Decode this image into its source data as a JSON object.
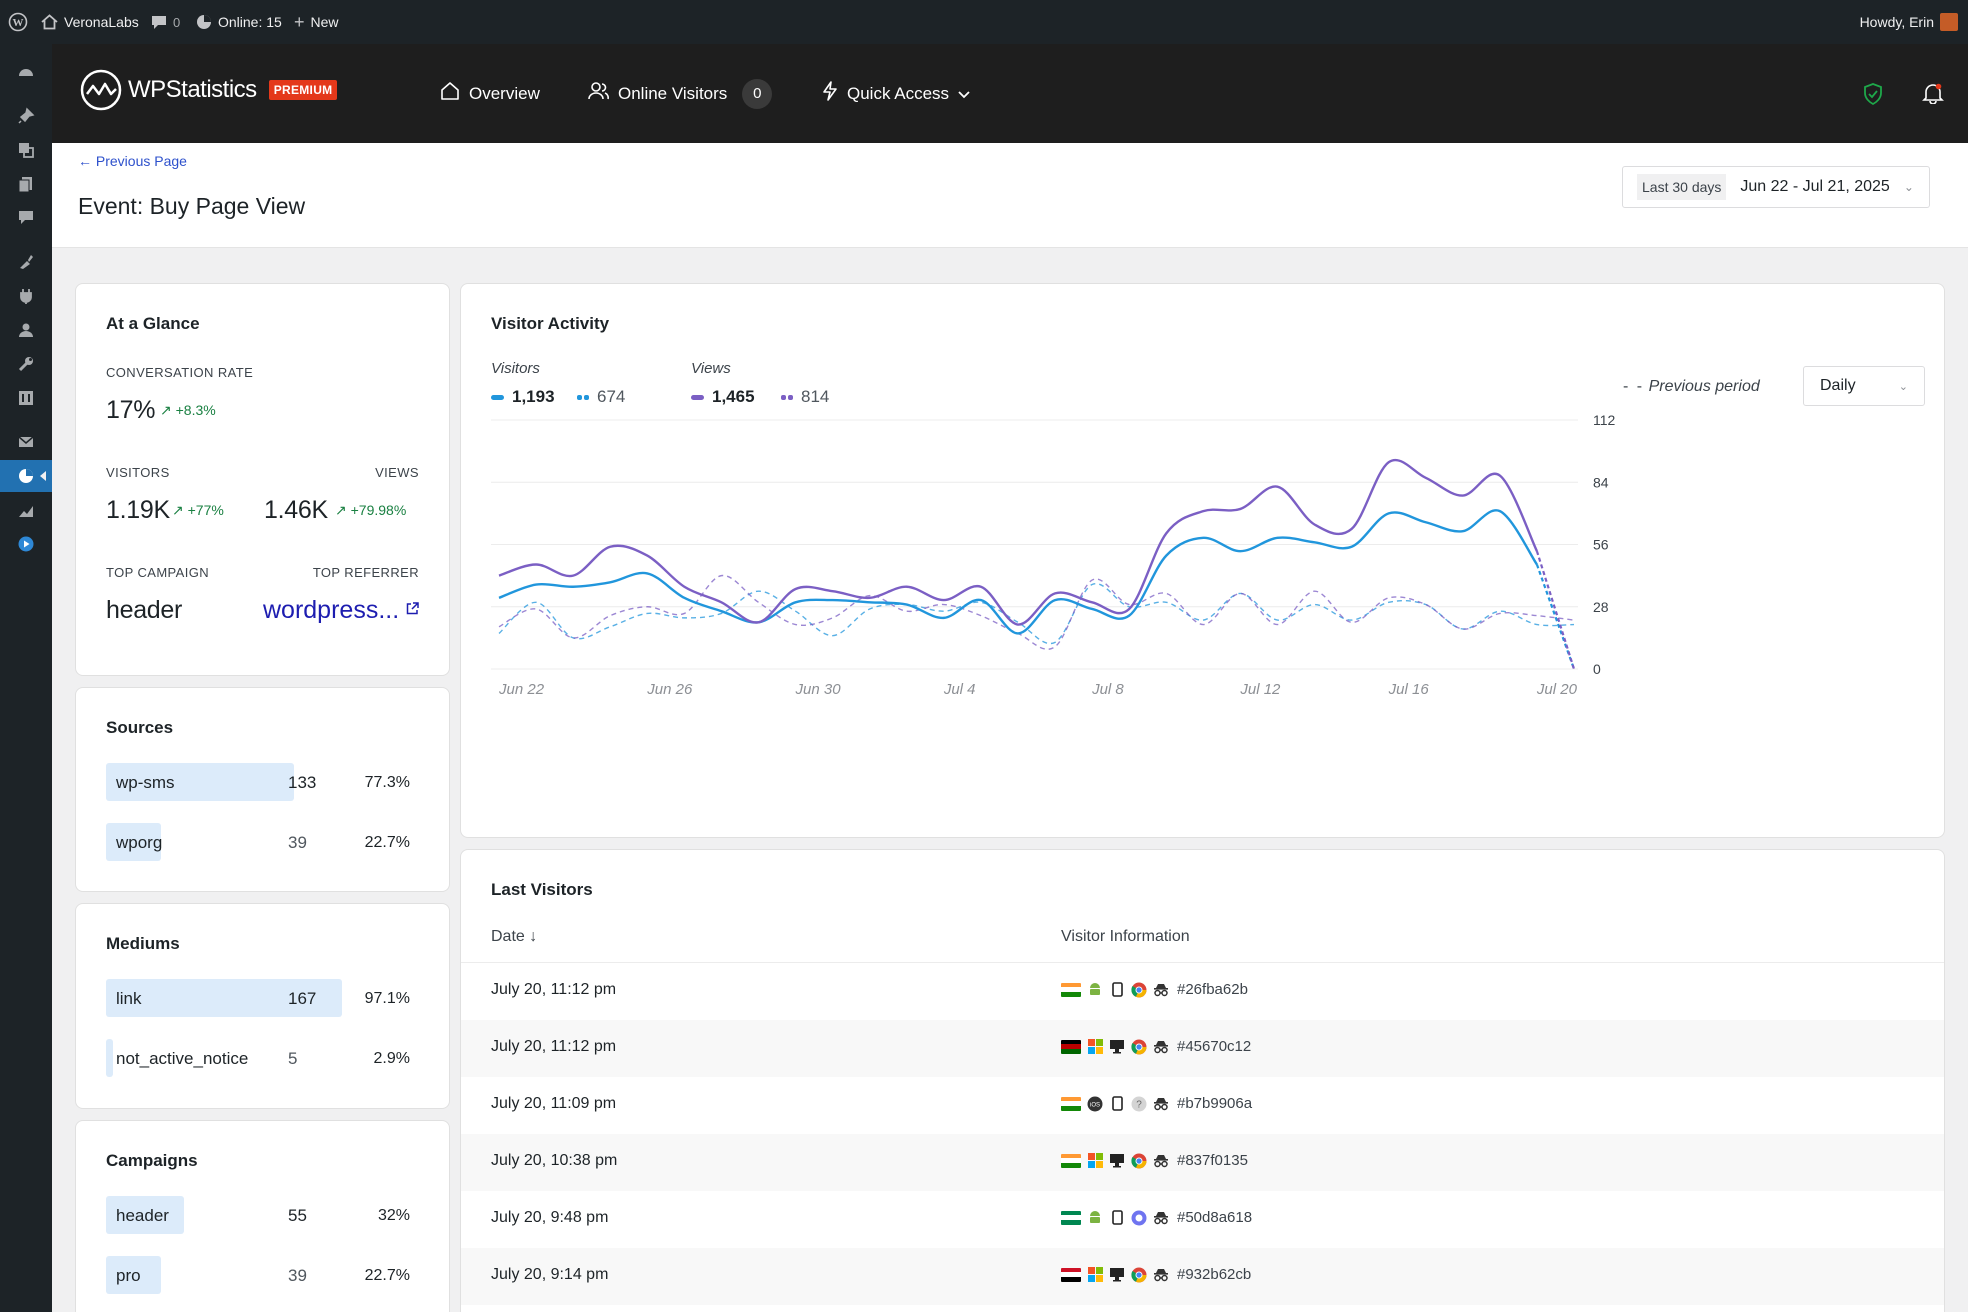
{
  "adminbar": {
    "site_name": "VeronaLabs",
    "comments_count": "0",
    "online": "Online: 15",
    "new_label": "New",
    "howdy": "Howdy, Erin"
  },
  "header": {
    "logo_text": "WPStatistics",
    "premium_badge": "PREMIUM",
    "nav": {
      "overview": "Overview",
      "online_visitors": "Online Visitors",
      "online_count": "0",
      "quick_access": "Quick Access"
    }
  },
  "page": {
    "back_link": "Previous Page",
    "title": "Event: Buy Page View",
    "date_preset": "Last 30 days",
    "date_range": "Jun 22 - Jul 21, 2025"
  },
  "glance": {
    "title": "At a Glance",
    "conversion_label": "CONVERSATION RATE",
    "conversion_value": "17%",
    "conversion_delta": "+8.3%",
    "visitors_label": "VISITORS",
    "visitors_value": "1.19K",
    "visitors_delta": "+77%",
    "views_label": "VIEWS",
    "views_value": "1.46K",
    "views_delta": "+79.98%",
    "campaign_label": "TOP CAMPAIGN",
    "campaign_value": "header",
    "referrer_label": "TOP REFERRER",
    "referrer_value": "wordpress..."
  },
  "sources": {
    "title": "Sources",
    "rows": [
      {
        "name": "wp-sms",
        "count": "133",
        "pct": "77.3%",
        "share": 0.773
      },
      {
        "name": "wporg",
        "count": "39",
        "pct": "22.7%",
        "share": 0.227
      }
    ]
  },
  "mediums": {
    "title": "Mediums",
    "rows": [
      {
        "name": "link",
        "count": "167",
        "pct": "97.1%",
        "share": 0.971
      },
      {
        "name": "not_active_notice",
        "count": "5",
        "pct": "2.9%",
        "share": 0.029
      }
    ]
  },
  "campaigns": {
    "title": "Campaigns",
    "rows": [
      {
        "name": "header",
        "count": "55",
        "pct": "32%",
        "share": 0.32
      },
      {
        "name": "pro",
        "count": "39",
        "pct": "22.7%",
        "share": 0.227
      }
    ]
  },
  "activity": {
    "title": "Visitor Activity",
    "visitors_heading": "Visitors",
    "visitors_current": "1,193",
    "visitors_previous": "674",
    "views_heading": "Views",
    "views_current": "1,465",
    "views_previous": "814",
    "previous_period": "Previous period",
    "interval": "Daily"
  },
  "chart_data": {
    "type": "line",
    "x": [
      "Jun 22",
      "Jun 23",
      "Jun 24",
      "Jun 25",
      "Jun 26",
      "Jun 27",
      "Jun 28",
      "Jun 29",
      "Jun 30",
      "Jul 1",
      "Jul 2",
      "Jul 3",
      "Jul 4",
      "Jul 5",
      "Jul 6",
      "Jul 7",
      "Jul 8",
      "Jul 9",
      "Jul 10",
      "Jul 11",
      "Jul 12",
      "Jul 13",
      "Jul 14",
      "Jul 15",
      "Jul 16",
      "Jul 17",
      "Jul 18",
      "Jul 19",
      "Jul 20",
      "Jul 21"
    ],
    "x_tick_labels": [
      "Jun 22",
      "Jun 26",
      "Jun 30",
      "Jul 4",
      "Jul 8",
      "Jul 12",
      "Jul 16",
      "Jul 20"
    ],
    "ylim": [
      0,
      112
    ],
    "yticks": [
      0,
      28,
      56,
      84,
      112
    ],
    "grid": true,
    "series": [
      {
        "name": "Visitors",
        "color": "#2196dc",
        "dashed": false,
        "values": [
          32,
          38,
          37,
          39,
          43,
          32,
          26,
          21,
          30,
          31,
          30,
          29,
          23,
          31,
          16,
          31,
          27,
          24,
          51,
          59,
          53,
          59,
          57,
          55,
          70,
          66,
          62,
          71,
          47,
          0
        ]
      },
      {
        "name": "Views",
        "color": "#7b5fc4",
        "dashed": false,
        "values": [
          42,
          47,
          42,
          55,
          51,
          37,
          30,
          21,
          36,
          35,
          32,
          37,
          31,
          37,
          20,
          34,
          30,
          27,
          61,
          71,
          72,
          82,
          65,
          63,
          93,
          86,
          78,
          87,
          53,
          0
        ]
      },
      {
        "name": "Visitors (previous period)",
        "color": "#2196dc",
        "dashed": true,
        "values": [
          16,
          30,
          14,
          19,
          25,
          23,
          25,
          35,
          26,
          15,
          27,
          29,
          26,
          30,
          21,
          12,
          38,
          28,
          30,
          22,
          34,
          22,
          29,
          22,
          30,
          29,
          18,
          26,
          20,
          20
        ]
      },
      {
        "name": "Views (previous period)",
        "color": "#7b5fc4",
        "dashed": true,
        "values": [
          19,
          27,
          14,
          24,
          28,
          25,
          42,
          30,
          20,
          23,
          33,
          26,
          29,
          24,
          16,
          10,
          40,
          29,
          34,
          20,
          34,
          20,
          35,
          21,
          32,
          29,
          18,
          25,
          24,
          22
        ]
      }
    ]
  },
  "last_visitors": {
    "title": "Last Visitors",
    "col_date": "Date",
    "col_info": "Visitor Information",
    "rows": [
      {
        "date": "July 20, 11:12 pm",
        "hash": "#26fba62b",
        "flag": [
          "#ff9933",
          "#ffffff",
          "#138808"
        ],
        "os": "android-icon",
        "device": "mobile-icon",
        "browser": "chrome-icon"
      },
      {
        "date": "July 20, 11:12 pm",
        "hash": "#45670c12",
        "flag": [
          "#000000",
          "#bb0000",
          "#006600"
        ],
        "os": "windows-icon",
        "device": "desktop-icon",
        "browser": "chrome-icon"
      },
      {
        "date": "July 20, 11:09 pm",
        "hash": "#b7b9906a",
        "flag": [
          "#ff9933",
          "#ffffff",
          "#138808"
        ],
        "os": "ios-icon",
        "device": "mobile-icon",
        "browser": "unknown-browser-icon"
      },
      {
        "date": "July 20, 10:38 pm",
        "hash": "#837f0135",
        "flag": [
          "#ff9933",
          "#ffffff",
          "#138808"
        ],
        "os": "windows-icon",
        "device": "desktop-icon",
        "browser": "chrome-icon"
      },
      {
        "date": "July 20, 9:48 pm",
        "hash": "#50d8a618",
        "flag": [
          "#008751",
          "#ffffff",
          "#008751"
        ],
        "os": "android-icon",
        "device": "mobile-icon",
        "browser": "other-browser-icon"
      },
      {
        "date": "July 20, 9:14 pm",
        "hash": "#932b62cb",
        "flag": [
          "#ce1126",
          "#ffffff",
          "#000000"
        ],
        "os": "windows-icon",
        "device": "desktop-icon",
        "browser": "chrome-icon"
      }
    ]
  },
  "colors": {
    "adminbar": "#1d2327",
    "wps_header": "#1e1e1e",
    "accent_blue": "#2271b1",
    "positive": "#1a8042",
    "premium": "#e4381a",
    "bar_fill": "#dcebfa"
  }
}
